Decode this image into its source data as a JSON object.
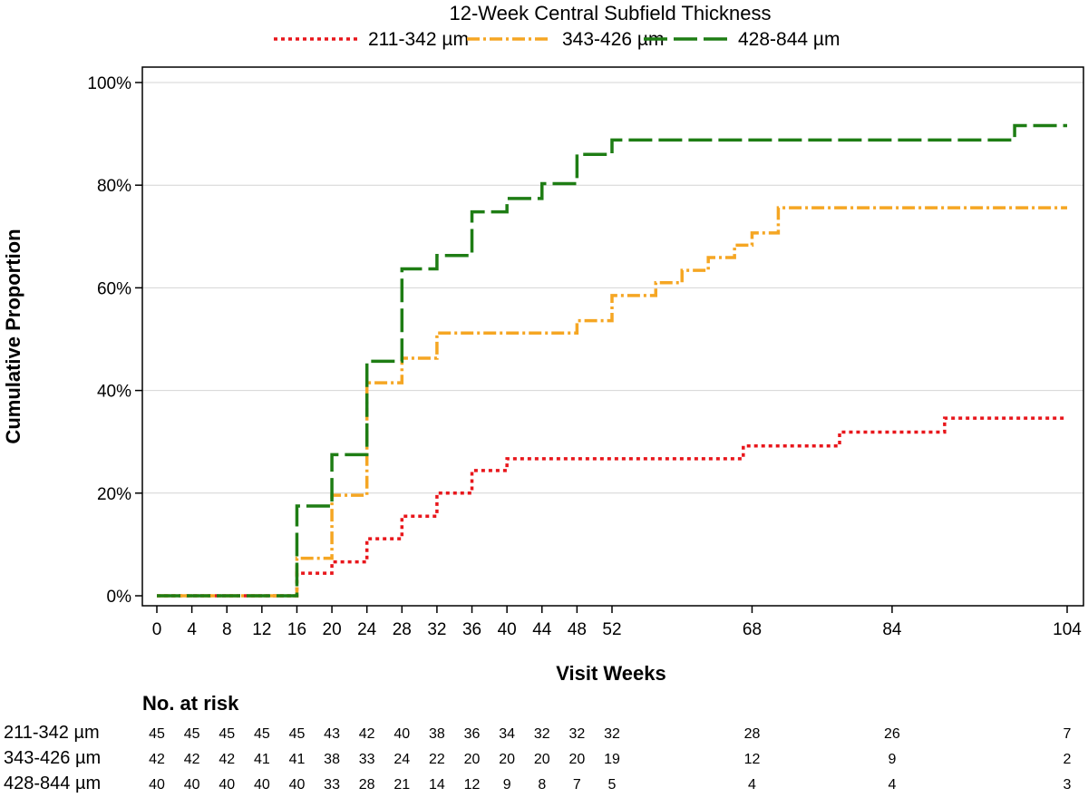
{
  "chart_data": {
    "type": "line",
    "title": "12-Week Central Subfield Thickness",
    "xlabel": "Visit Weeks",
    "ylabel": "Cumulative Proportion",
    "xlim": [
      0,
      104
    ],
    "ylim": [
      0,
      100
    ],
    "x_ticks": [
      0,
      4,
      8,
      12,
      16,
      20,
      24,
      28,
      32,
      36,
      40,
      44,
      48,
      52,
      68,
      84,
      104
    ],
    "y_ticks": [
      0,
      20,
      40,
      60,
      80,
      100
    ],
    "y_tick_labels": [
      "0%",
      "20%",
      "40%",
      "60%",
      "80%",
      "100%"
    ],
    "grid": "horizontal",
    "series": [
      {
        "name": "211-342 µm",
        "color": "#e8161b",
        "dash": "dotted",
        "x": [
          0,
          16,
          20,
          24,
          28,
          32,
          36,
          40,
          67,
          78,
          90,
          104
        ],
        "values": [
          0,
          4.4,
          6.6,
          11.1,
          15.5,
          20.0,
          24.4,
          26.7,
          29.2,
          31.9,
          34.6,
          34.6
        ]
      },
      {
        "name": "343-426 µm",
        "color": "#f5a623",
        "dash": "dashdot",
        "x": [
          0,
          16,
          20,
          24,
          28,
          32,
          48,
          52,
          57,
          60,
          63,
          66,
          68,
          71,
          104
        ],
        "values": [
          0,
          7.3,
          19.6,
          41.5,
          46.3,
          51.2,
          53.6,
          58.5,
          61.0,
          63.4,
          65.9,
          68.3,
          70.7,
          75.6,
          75.6
        ]
      },
      {
        "name": "428-844 µm",
        "color": "#1e7d14",
        "dash": "longdash",
        "x": [
          0,
          16,
          20,
          24,
          28,
          32,
          36,
          40,
          44,
          48,
          52,
          98,
          104
        ],
        "values": [
          0,
          17.5,
          27.5,
          45.7,
          63.7,
          66.3,
          74.8,
          77.4,
          80.3,
          86.0,
          88.8,
          91.6,
          91.6
        ]
      }
    ],
    "risk_table": {
      "header": "No. at risk",
      "weeks": [
        0,
        4,
        8,
        12,
        16,
        20,
        24,
        28,
        32,
        36,
        40,
        44,
        48,
        52,
        68,
        84,
        104
      ],
      "rows": [
        {
          "label": "211-342 µm",
          "values": [
            "45",
            "45",
            "45",
            "45",
            "45",
            "43",
            "42",
            "40",
            "38",
            "36",
            "34",
            "32",
            "32",
            "32",
            "28",
            "26",
            "7"
          ]
        },
        {
          "label": "343-426 µm",
          "values": [
            "42",
            "42",
            "42",
            "41",
            "41",
            "38",
            "33",
            "24",
            "22",
            "20",
            "20",
            "20",
            "20",
            "19",
            "12",
            "9",
            "2"
          ]
        },
        {
          "label": "428-844 µm",
          "values": [
            "40",
            "40",
            "40",
            "40",
            "40",
            "33",
            "28",
            "21",
            "14",
            "12",
            "9",
            "8",
            "7",
            "5",
            "4",
            "4",
            "3"
          ]
        }
      ]
    }
  }
}
